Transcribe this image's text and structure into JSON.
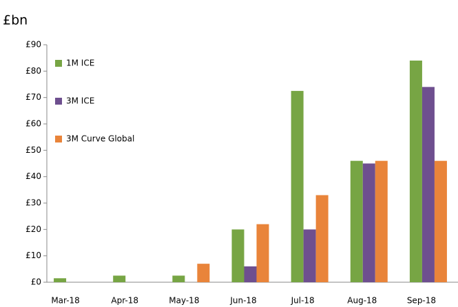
{
  "chart_data": {
    "type": "bar",
    "y_axis_label": "£bn",
    "categories": [
      "Mar-18",
      "Apr-18",
      "May-18",
      "Jun-18",
      "Jul-18",
      "Aug-18",
      "Sep-18"
    ],
    "series": [
      {
        "name": "1M ICE",
        "color": "#77a544",
        "values": [
          1.5,
          2.5,
          2.5,
          20,
          72.5,
          46,
          84
        ]
      },
      {
        "name": "3M ICE",
        "color": "#6e4f8f",
        "values": [
          0,
          0,
          0,
          6,
          20,
          45,
          74
        ]
      },
      {
        "name": "3M Curve Global",
        "color": "#e9843a",
        "values": [
          0,
          0,
          7,
          22,
          33,
          46,
          46
        ]
      }
    ],
    "ylim": [
      0,
      90
    ],
    "yticks": [
      {
        "value": 0,
        "label": "£0"
      },
      {
        "value": 10,
        "label": "£10"
      },
      {
        "value": 20,
        "label": "£20"
      },
      {
        "value": 30,
        "label": "£30"
      },
      {
        "value": 40,
        "label": "£40"
      },
      {
        "value": 50,
        "label": "£50"
      },
      {
        "value": 60,
        "label": "£60"
      },
      {
        "value": 70,
        "label": "£70"
      },
      {
        "value": 80,
        "label": "£80"
      },
      {
        "value": 90,
        "label": "£90"
      }
    ],
    "grid": false,
    "legend": "upper left"
  }
}
